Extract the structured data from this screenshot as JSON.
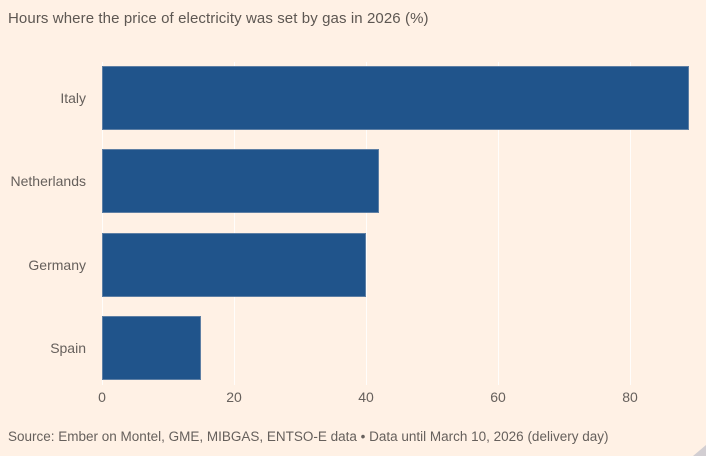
{
  "chart_data": {
    "type": "bar",
    "orientation": "horizontal",
    "title": "Hours where the price of electricity was set by gas in 2026 (%)",
    "categories": [
      "Italy",
      "Netherlands",
      "Germany",
      "Spain"
    ],
    "values": [
      89,
      42,
      40,
      15
    ],
    "x_ticks": [
      0,
      20,
      40,
      60,
      80
    ],
    "xlim": [
      0,
      90
    ],
    "xlabel": "",
    "ylabel": "",
    "grid": "vertical white gridlines at each x tick, drawn behind bars",
    "legend": "none",
    "source": "Source: Ember on Montel, GME, MIBGAS, ENTSO-E data • Data until March 10, 2026 (delivery day)"
  },
  "colors": {
    "background": "#fff1e5",
    "bar": "#20548b",
    "text": "#66605c",
    "title_text": "#5d5752",
    "gridline": "rgba(255,255,255,0.85)",
    "resize_handle": "#d2ced2"
  }
}
